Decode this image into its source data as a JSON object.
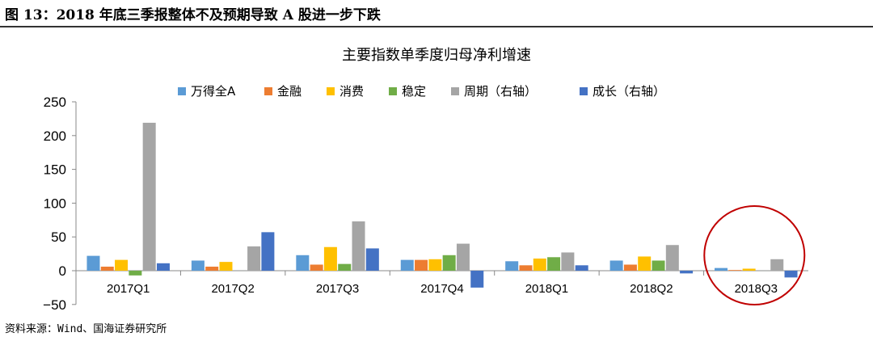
{
  "figure": {
    "title": "图 13：2018 年底三季报整体不及预期导致 A 股进一步下跌",
    "source": "资料来源：Wind、国海证券研究所"
  },
  "colors": {
    "万得全A": "#5B9BD5",
    "金融": "#ED7D31",
    "消费": "#FFC000",
    "稳定": "#70AD47",
    "周期（右轴）": "#A5A5A5",
    "成长（右轴）": "#4472C4",
    "circle": "#C00000"
  },
  "chart_data": {
    "type": "bar",
    "title": "主要指数单季度归母净利增速",
    "categories": [
      "2017Q1",
      "2017Q2",
      "2017Q3",
      "2017Q4",
      "2018Q1",
      "2018Q2",
      "2018Q3"
    ],
    "ylim": [
      -50,
      250
    ],
    "yticks": [
      -50,
      0,
      50,
      100,
      150,
      200,
      250
    ],
    "legend_position": "top",
    "grid": false,
    "series": [
      {
        "name": "万得全A",
        "values": [
          22,
          15,
          23,
          16,
          14,
          15,
          4
        ]
      },
      {
        "name": "金融",
        "values": [
          6,
          6,
          9,
          16,
          8,
          9,
          1
        ]
      },
      {
        "name": "消费",
        "values": [
          16,
          13,
          35,
          17,
          18,
          21,
          3
        ]
      },
      {
        "name": "稳定",
        "values": [
          -7,
          0,
          10,
          23,
          20,
          15,
          0
        ]
      },
      {
        "name": "周期（右轴）",
        "values": [
          219,
          36,
          73,
          40,
          27,
          38,
          17
        ]
      },
      {
        "name": "成长（右轴）",
        "values": [
          11,
          57,
          33,
          -25,
          8,
          -4,
          -10
        ]
      }
    ],
    "annotation": {
      "type": "circle",
      "category": "2018Q3"
    }
  }
}
